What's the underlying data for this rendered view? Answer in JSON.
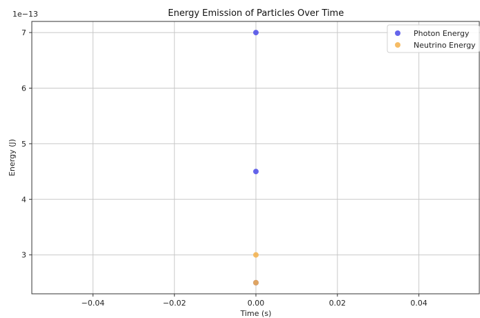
{
  "chart_data": {
    "type": "scatter",
    "title": "Energy Emission of Particles Over Time",
    "xlabel": "Time (s)",
    "ylabel": "Energy (J)",
    "y_offset_label": "1e−13",
    "xlim": [
      -0.055,
      0.055
    ],
    "ylim": [
      2.3,
      7.2
    ],
    "x_ticks": [
      -0.04,
      -0.02,
      0.0,
      0.02,
      0.04
    ],
    "x_tick_labels": [
      "−0.04",
      "−0.02",
      "0.00",
      "0.02",
      "0.04"
    ],
    "y_ticks": [
      3,
      4,
      5,
      6,
      7
    ],
    "y_tick_labels": [
      "3",
      "4",
      "5",
      "6",
      "7"
    ],
    "grid": true,
    "legend_position": "top-right",
    "series": [
      {
        "name": "Photon Energy",
        "color": "#4a4ae8",
        "x": [
          0.0,
          0.0,
          0.0
        ],
        "y": [
          7.0,
          4.5,
          2.5
        ]
      },
      {
        "name": "Neutrino Energy",
        "color": "#f5b04a",
        "x": [
          0.0,
          0.0
        ],
        "y": [
          3.0,
          2.5
        ]
      }
    ]
  }
}
